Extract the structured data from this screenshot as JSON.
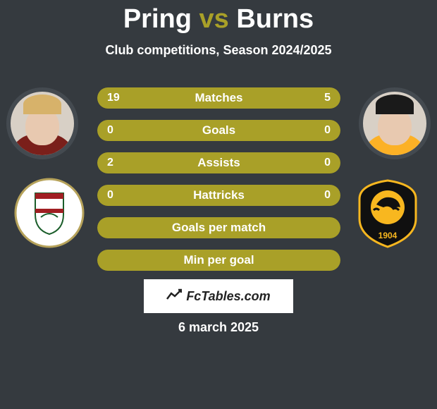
{
  "title": {
    "player1": "Pring",
    "vs": "vs",
    "player2": "Burns"
  },
  "subtitle": "Club competitions, Season 2024/2025",
  "colors": {
    "bar_track": "#5e5a28",
    "bar_fill": "#a9a028",
    "page_bg": "#353a3f",
    "text": "#ffffff"
  },
  "bars": [
    {
      "label": "Matches",
      "left": "19",
      "right": "5",
      "left_pct": 79,
      "right_pct": 21,
      "show_values": true,
      "full_fill": false
    },
    {
      "label": "Goals",
      "left": "0",
      "right": "0",
      "left_pct": 0,
      "right_pct": 0,
      "show_values": true,
      "full_fill": true
    },
    {
      "label": "Assists",
      "left": "2",
      "right": "0",
      "left_pct": 100,
      "right_pct": 0,
      "show_values": true,
      "full_fill": true
    },
    {
      "label": "Hattricks",
      "left": "0",
      "right": "0",
      "left_pct": 0,
      "right_pct": 0,
      "show_values": true,
      "full_fill": true
    },
    {
      "label": "Goals per match",
      "left": "",
      "right": "",
      "left_pct": 0,
      "right_pct": 0,
      "show_values": false,
      "full_fill": true
    },
    {
      "label": "Min per goal",
      "left": "",
      "right": "",
      "left_pct": 0,
      "right_pct": 0,
      "show_values": false,
      "full_fill": true
    }
  ],
  "watermark": "FcTables.com",
  "date": "6 march 2025",
  "players": {
    "left": {
      "name": "Pring",
      "hair_color": "#d7b26a",
      "shirt_color": "#7a1f1a"
    },
    "right": {
      "name": "Burns",
      "hair_color": "#1a1a1a",
      "shirt_color": "#fcb126"
    }
  },
  "clubs": {
    "left": {
      "shield_bg": "#ffffff",
      "accent1": "#a01e22",
      "accent2": "#1a5d2a"
    },
    "right": {
      "shield_bg": "#101010",
      "accent1": "#f8b71f",
      "year": "1904"
    }
  }
}
